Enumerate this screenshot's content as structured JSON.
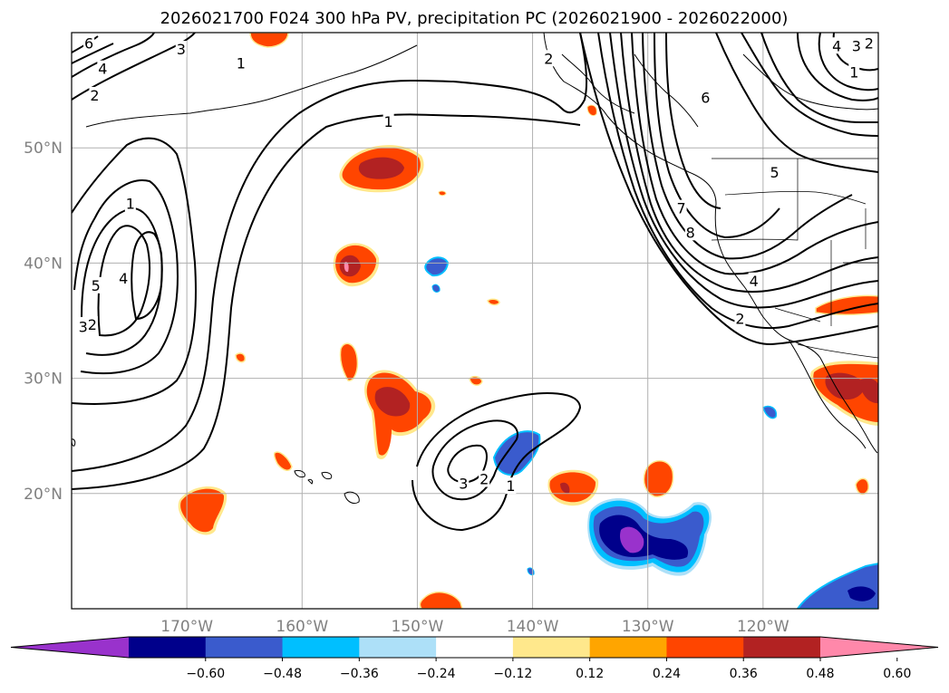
{
  "chart_data": {
    "type": "contour-map",
    "title": "2026021700 F024 300 hPa PV, precipitation PC (2026021900 - 2026022000)",
    "lon_range": [
      -180,
      -110
    ],
    "lat_range": [
      10,
      60
    ],
    "x_ticks": [
      "170°W",
      "160°W",
      "150°W",
      "140°W",
      "130°W",
      "120°W"
    ],
    "y_ticks": [
      "20°N",
      "30°N",
      "40°N",
      "50°N"
    ],
    "grid": true,
    "contour_levels": [
      "1",
      "2",
      "3",
      "4",
      "5",
      "6",
      "7",
      "8"
    ],
    "contour_label_samples": [
      {
        "text": "1",
        "lon": -152.5,
        "lat": 52.2
      },
      {
        "text": "1",
        "lon": -165.3,
        "lat": 57.3
      },
      {
        "text": "2",
        "lon": -178.0,
        "lat": 54.5
      },
      {
        "text": "4",
        "lon": -177.3,
        "lat": 56.8
      },
      {
        "text": "6",
        "lon": -178.5,
        "lat": 59.0
      },
      {
        "text": "3",
        "lon": -170.5,
        "lat": 58.5
      },
      {
        "text": "1",
        "lon": -174.9,
        "lat": 45.1
      },
      {
        "text": "4",
        "lon": -175.5,
        "lat": 38.6
      },
      {
        "text": "5",
        "lon": -177.9,
        "lat": 38.0
      },
      {
        "text": "3",
        "lon": -179.0,
        "lat": 34.4
      },
      {
        "text": "2",
        "lon": -178.2,
        "lat": 34.6
      },
      {
        "text": "3",
        "lon": -146.0,
        "lat": 20.8
      },
      {
        "text": "2",
        "lon": -144.2,
        "lat": 21.2
      },
      {
        "text": "1",
        "lon": -141.9,
        "lat": 20.6
      },
      {
        "text": "2",
        "lon": -138.6,
        "lat": 57.7
      },
      {
        "text": "6",
        "lon": -125.0,
        "lat": 54.3
      },
      {
        "text": "7",
        "lon": -127.1,
        "lat": 44.7
      },
      {
        "text": "8",
        "lon": -126.3,
        "lat": 42.6
      },
      {
        "text": "4",
        "lon": -113.6,
        "lat": 58.8
      },
      {
        "text": "3",
        "lon": -111.9,
        "lat": 58.8
      },
      {
        "text": "2",
        "lon": -110.8,
        "lat": 59.0
      },
      {
        "text": "1",
        "lon": -112.1,
        "lat": 56.5
      },
      {
        "text": "5",
        "lon": -119.0,
        "lat": 47.8
      },
      {
        "text": "4",
        "lon": -120.8,
        "lat": 38.4
      },
      {
        "text": "2",
        "lon": -122.0,
        "lat": 35.1
      }
    ],
    "colorbar": {
      "ticks": [
        "−0.60",
        "−0.48",
        "−0.36",
        "−0.24",
        "−0.12",
        "0.12",
        "0.24",
        "0.36",
        "0.48",
        "0.60"
      ],
      "colors": [
        "#9932CC",
        "#00008B",
        "#3A5BCD",
        "#00BFFF",
        "#ADE0F8",
        "#FFFFFF",
        "#FFE88C",
        "#FFA500",
        "#FF4500",
        "#B22222",
        "#FF88AA"
      ],
      "extend": "both"
    }
  }
}
